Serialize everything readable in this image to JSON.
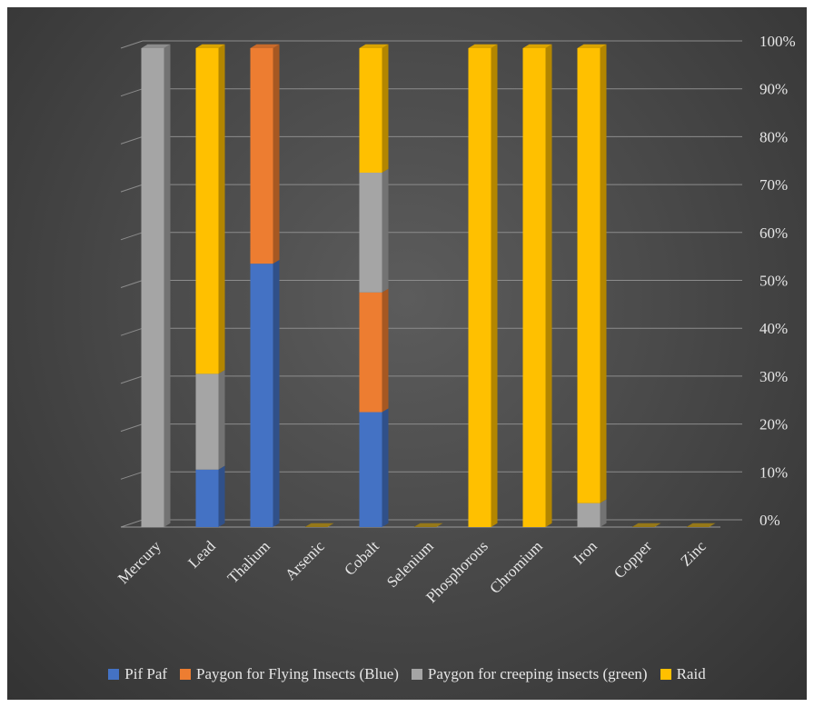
{
  "chart_data": {
    "type": "bar",
    "stacked": "percent",
    "title": "",
    "xlabel": "",
    "ylabel": "",
    "ylim": [
      0,
      100
    ],
    "y_ticks": [
      "0%",
      "10%",
      "20%",
      "30%",
      "40%",
      "50%",
      "60%",
      "70%",
      "80%",
      "90%",
      "100%"
    ],
    "grid": true,
    "legend_position": "bottom",
    "categories": [
      "Mercury",
      "Lead",
      "Thalium",
      "Arsenic",
      "Cobalt",
      "Selenium",
      "Phosphorous",
      "Chromium",
      "Iron",
      "Copper",
      "Zinc"
    ],
    "series": [
      {
        "name": "Pif Paf",
        "color": "#4472c4",
        "values": [
          0,
          12,
          55,
          0,
          24,
          0,
          0,
          0,
          0,
          0,
          0
        ]
      },
      {
        "name": "Paygon for Flying Insects (Blue)",
        "color": "#ed7d31",
        "values": [
          0,
          0,
          45,
          0,
          25,
          0,
          0,
          0,
          0,
          0,
          0
        ]
      },
      {
        "name": "Paygon for creeping insects (green)",
        "color": "#a5a5a5",
        "values": [
          100,
          20,
          0,
          0,
          25,
          0,
          0,
          0,
          5,
          0,
          0
        ]
      },
      {
        "name": "Raid",
        "color": "#ffc000",
        "values": [
          0,
          68,
          0,
          0,
          26,
          0,
          100,
          100,
          95,
          0,
          0
        ]
      }
    ]
  }
}
